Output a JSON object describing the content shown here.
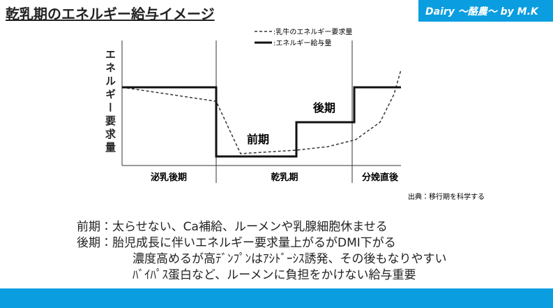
{
  "header": {
    "title": "乾乳期のエネルギー給与イメージ",
    "brand": "Dairy ～酪農～ by M.K"
  },
  "diagram": {
    "y_axis_label": "エネルギー要求量",
    "legend": [
      ":乳牛のエネルギー要求量",
      ":エネルギー給与量"
    ],
    "periods": [
      "泌乳後期",
      "乾乳期",
      "分娩直後"
    ],
    "annotations": [
      "前期",
      "後期"
    ],
    "source": "出典：移行期を科学する"
  },
  "notes": [
    "前期：太らせない、Ca補給、ルーメンや乳腺細胞休ませる",
    "後期：胎児成長に伴いエネルギー要求量上がるがDMI下がる",
    "濃度高めるが高ﾃﾞﾝﾌﾟﾝはｱｼﾄﾞｰｼｽ誘発、その後もなりやすい",
    "ﾊﾞｲﾊﾟｽ蛋白など、ルーメンに負担をかけない給与重要"
  ]
}
